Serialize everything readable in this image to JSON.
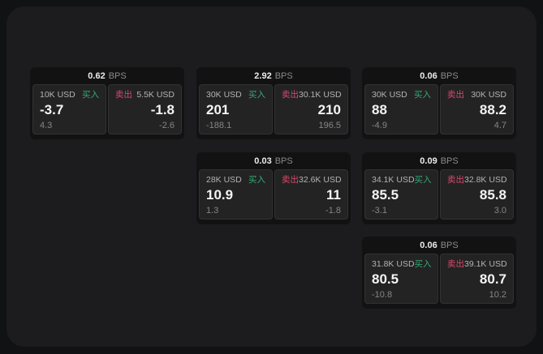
{
  "labels": {
    "buy": "买入",
    "sell": "卖出",
    "bps_suffix": "BPS"
  },
  "colors": {
    "background": "#111213",
    "surface": "#1c1c1e",
    "card": "#121213",
    "pane": "#232324",
    "buy": "#36a873",
    "sell": "#d84a6b",
    "text_primary": "#f4f4f4",
    "text_secondary": "#868686"
  },
  "cards": [
    {
      "bps": "0.62",
      "buy": {
        "amount": "10K USD",
        "value": "-3.7",
        "sub": "4.3"
      },
      "sell": {
        "amount": "5.5K USD",
        "value": "-1.8",
        "sub": "-2.6"
      }
    },
    {
      "bps": "2.92",
      "buy": {
        "amount": "30K USD",
        "value": "201",
        "sub": "-188.1"
      },
      "sell": {
        "amount": "30.1K USD",
        "value": "210",
        "sub": "196.5"
      }
    },
    {
      "bps": "0.06",
      "buy": {
        "amount": "30K USD",
        "value": "88",
        "sub": "-4.9"
      },
      "sell": {
        "amount": "30K USD",
        "value": "88.2",
        "sub": "4.7"
      }
    },
    {
      "bps": "0.03",
      "buy": {
        "amount": "28K USD",
        "value": "10.9",
        "sub": "1.3"
      },
      "sell": {
        "amount": "32.6K USD",
        "value": "11",
        "sub": "-1.8"
      }
    },
    {
      "bps": "0.09",
      "buy": {
        "amount": "34.1K USD",
        "value": "85.5",
        "sub": "-3.1"
      },
      "sell": {
        "amount": "32.8K USD",
        "value": "85.8",
        "sub": "3.0"
      }
    },
    {
      "bps": "0.06",
      "buy": {
        "amount": "31.8K USD",
        "value": "80.5",
        "sub": "-10.8"
      },
      "sell": {
        "amount": "39.1K USD",
        "value": "80.7",
        "sub": "10.2"
      }
    }
  ]
}
